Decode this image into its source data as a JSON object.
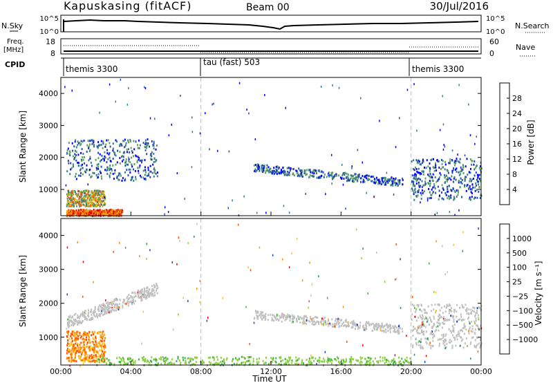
{
  "header": {
    "station": "Kapuskasing (fitACF)",
    "beam": "Beam 00",
    "date": "30/Jul/2016"
  },
  "noise_panel": {
    "left_label": "N.Sky",
    "right_label": "N.Search",
    "left_ticks": [
      "10^5",
      "10^0"
    ],
    "right_ticks": [
      "10^5",
      "10^0"
    ]
  },
  "freq_panel": {
    "left_label_1": "Freq.",
    "left_label_2": "[MHz]",
    "right_label": "Nave",
    "left_ticks": [
      "18",
      "8"
    ],
    "right_ticks": [
      "60",
      "0"
    ]
  },
  "cpid_panel": {
    "label": "CPID",
    "segments": [
      {
        "start_hour": 0,
        "end_hour": 8,
        "label": "themis 3300"
      },
      {
        "start_hour": 8,
        "end_hour": 20,
        "label": "tau (fast) 503"
      },
      {
        "start_hour": 20,
        "end_hour": 24,
        "label": "themis 3300"
      }
    ]
  },
  "chart_data": [
    {
      "type": "heatmap",
      "title": "",
      "ylabel": "Slant Range [km]",
      "xlabel": "",
      "ylim": [
        180,
        4500
      ],
      "xlim": [
        0,
        24
      ],
      "yticks": [
        "1000",
        "2000",
        "3000",
        "4000"
      ],
      "colorbar": {
        "label": "Power [dB]",
        "ticks": [
          "4",
          "8",
          "12",
          "16",
          "20",
          "24",
          "28"
        ],
        "colors": [
          "#0000ff",
          "#1f4fb0",
          "#3a7a8a",
          "#5aa05a",
          "#c8c020",
          "#f0a010",
          "#f06010",
          "#e00000"
        ]
      },
      "regions": [
        {
          "hour_range": [
            0.3,
            3.5
          ],
          "range_km": [
            200,
            400
          ],
          "level": "high"
        },
        {
          "hour_range": [
            0.3,
            2.5
          ],
          "range_km": [
            500,
            1000
          ],
          "level": "medium"
        },
        {
          "hour_range": [
            0.3,
            5.5
          ],
          "range_km": [
            1300,
            2600
          ],
          "level": "low"
        },
        {
          "hour_range": [
            11,
            19.5
          ],
          "range_km": [
            1000,
            1800
          ],
          "level": "low"
        },
        {
          "hour_range": [
            20,
            24
          ],
          "range_km": [
            700,
            2000
          ],
          "level": "low"
        }
      ]
    },
    {
      "type": "heatmap",
      "title": "",
      "ylabel": "Slant Range [km]",
      "xlabel": "Time UT",
      "ylim": [
        180,
        4500
      ],
      "xlim": [
        0,
        24
      ],
      "yticks": [
        "1000",
        "2000",
        "3000",
        "4000"
      ],
      "xticks": [
        "00:00",
        "04:00",
        "08:00",
        "12:00",
        "16:00",
        "20:00",
        "00:00"
      ],
      "colorbar": {
        "label": "Velocity [m s⁻¹]",
        "ticks": [
          "1000",
          "500",
          "100",
          "25",
          "−25",
          "−100",
          "−500",
          "−1000"
        ],
        "colors": [
          "#2040c0",
          "#2e8b57",
          "#3cb043",
          "#8ad040",
          "#c0c0c0",
          "#ffc020",
          "#ff8c00",
          "#ff5000",
          "#ff0000"
        ]
      },
      "regions": [
        {
          "hour_range": [
            0.3,
            5.5
          ],
          "range_km": [
            1300,
            2600
          ],
          "level": "ground scatter"
        },
        {
          "hour_range": [
            0.3,
            2.5
          ],
          "range_km": [
            300,
            1200
          ],
          "level": "negative"
        },
        {
          "hour_range": [
            2,
            20
          ],
          "range_km": [
            200,
            450
          ],
          "level": "positive"
        },
        {
          "hour_range": [
            11,
            19.5
          ],
          "range_km": [
            1000,
            1800
          ],
          "level": "ground scatter"
        },
        {
          "hour_range": [
            20,
            24
          ],
          "range_km": [
            700,
            2000
          ],
          "level": "ground scatter"
        }
      ]
    }
  ]
}
